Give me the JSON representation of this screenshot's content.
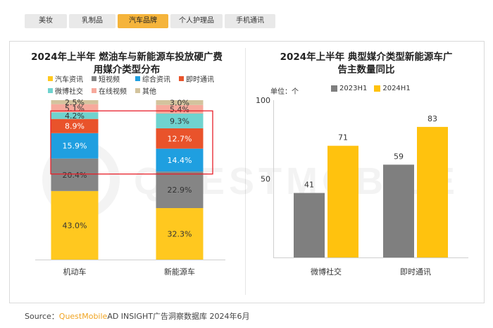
{
  "tabs": [
    {
      "label": "美妆",
      "active": false
    },
    {
      "label": "乳制品",
      "active": false
    },
    {
      "label": "汽车品牌",
      "active": true
    },
    {
      "label": "个人护理品",
      "active": false
    },
    {
      "label": "手机通讯",
      "active": false
    }
  ],
  "watermark": "QUESTMOBILE",
  "left_chart": {
    "title_line1": "2024年上半年 燃油车与新能源车投放硬广费",
    "title_line2": "用媒介类型分布"
  },
  "right_chart": {
    "title_line1": "2024年上半年 典型媒介类型新能源车广",
    "title_line2": "告主数量同比",
    "unit_label": "单位：个"
  },
  "source": {
    "prefix": "Source：",
    "brand": "QuestMobile",
    "rest": "AD INSIGHT广告洞察数据库 2024年6月"
  },
  "chart_data": [
    {
      "type": "bar",
      "stacked": true,
      "percent": true,
      "categories": [
        "机动车",
        "新能源车"
      ],
      "series": [
        {
          "name": "汽车资讯",
          "color": "#ffc81f",
          "values": [
            43.0,
            32.3
          ]
        },
        {
          "name": "短视频",
          "color": "#858585",
          "values": [
            20.4,
            22.9
          ]
        },
        {
          "name": "综合资讯",
          "color": "#1f9fe0",
          "values": [
            15.9,
            14.4
          ]
        },
        {
          "name": "即时通讯",
          "color": "#e9532b",
          "values": [
            8.9,
            12.7
          ]
        },
        {
          "name": "微博社交",
          "color": "#6fd3cf",
          "values": [
            4.2,
            9.3
          ]
        },
        {
          "name": "在线视频",
          "color": "#f7a99c",
          "values": [
            5.1,
            5.4
          ]
        },
        {
          "name": "其他",
          "color": "#d3c39d",
          "values": [
            2.5,
            3.0
          ]
        }
      ],
      "labels": {
        "0": [
          "43.0%",
          "20.4%",
          "15.9%",
          "8.9%",
          "4.2%",
          "5.1%",
          "2.5%"
        ],
        "1": [
          "32.3%",
          "22.9%",
          "14.4%",
          "12.7%",
          "9.3%",
          "5.4%",
          "3.0%"
        ]
      },
      "highlight": [
        "即时通讯",
        "微博社交"
      ],
      "highlight_color": "#e8202a"
    },
    {
      "type": "bar",
      "categories": [
        "微博社交",
        "即时通讯"
      ],
      "series": [
        {
          "name": "2023H1",
          "color": "#7f7f7f",
          "values": [
            41,
            59
          ]
        },
        {
          "name": "2024H1",
          "color": "#ffc20e",
          "values": [
            71,
            83
          ]
        }
      ],
      "ylim": [
        0,
        100
      ],
      "yticks": [
        0,
        50,
        100
      ],
      "ytick_labels": [
        "",
        "50",
        "100"
      ],
      "grid": false
    }
  ]
}
